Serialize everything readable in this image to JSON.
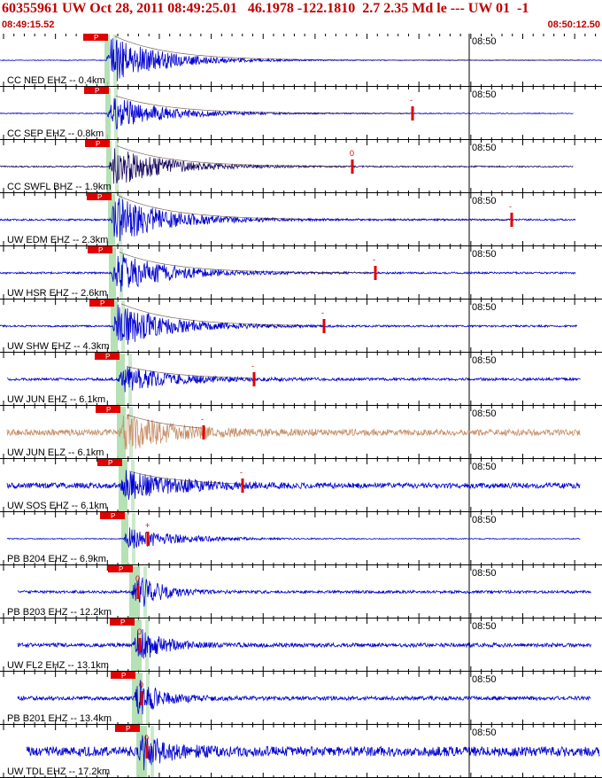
{
  "header": {
    "title": "60355961 UW Oct 28, 2011 08:49:25.01   46.1978 -122.1810  2.7 2.35 Md le --- UW 01  -1",
    "start_time": "08:49:15.52",
    "end_time": "08:50:12.50"
  },
  "minute_label": "08:50",
  "pick_label": "P",
  "colors": {
    "header_text": "#c00000",
    "trace_blue": "#0000d0",
    "trace_navy": "#1a0a60",
    "trace_tan": "#c8906a",
    "pick_box": "#e00000",
    "window_green": "#a8dca8",
    "coda_marker": "#e00000",
    "frame": "#000000"
  },
  "channels": [
    {
      "label": "CC NED EHZ -- 0.4km",
      "color": "trace_blue",
      "marker": ""
    },
    {
      "label": "CC SEP EHZ -- 0.8km",
      "color": "trace_blue",
      "marker": "-"
    },
    {
      "label": "CC SWFL BHZ -- 1.9km",
      "color": "trace_navy",
      "marker": "0"
    },
    {
      "label": "UW EDM EHZ -- 2.3km",
      "color": "trace_blue",
      "marker": "-"
    },
    {
      "label": "UW HSR EHZ -- 2.6km",
      "color": "trace_blue",
      "marker": "-"
    },
    {
      "label": "UW SHW EHZ -- 4.3km",
      "color": "trace_blue",
      "marker": "-"
    },
    {
      "label": "UW JUN EHZ -- 6.1km",
      "color": "trace_blue",
      "marker": "-"
    },
    {
      "label": "UW JUN ELZ -- 6.1km",
      "color": "trace_tan",
      "marker": "-"
    },
    {
      "label": "UW SOS EHZ -- 6.1km",
      "color": "trace_blue",
      "marker": "-"
    },
    {
      "label": "PB B204 EHZ -- 6.9km",
      "color": "trace_blue",
      "marker": "+"
    },
    {
      "label": "PB B203 EHZ -- 12.2km",
      "color": "trace_blue",
      "marker": "0"
    },
    {
      "label": "UW FL2 EHZ -- 13.1km",
      "color": "trace_blue",
      "marker": "0"
    },
    {
      "label": "PB B201 EHZ -- 13.4km",
      "color": "trace_blue",
      "marker": "0"
    },
    {
      "label": "UW TDL EHZ -- 17.2km",
      "color": "trace_blue",
      "marker": "0"
    }
  ]
}
